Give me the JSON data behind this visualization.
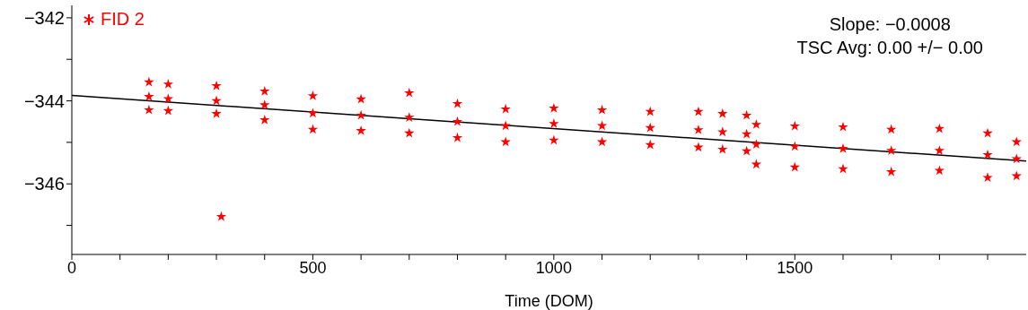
{
  "chart_data": {
    "type": "scatter",
    "xlabel": "Time (DOM)",
    "legend": "top left",
    "marker": "star",
    "xlim": [
      0,
      1980
    ],
    "ylim": [
      -347.7,
      -341.7
    ],
    "xticks": [
      0,
      {
        "value": 100,
        "label": null
      },
      {
        "value": 200,
        "label": null
      },
      {
        "value": 300,
        "label": null
      },
      {
        "value": 400,
        "label": null
      },
      500,
      {
        "value": 600,
        "label": null
      },
      {
        "value": 700,
        "label": null
      },
      {
        "value": 800,
        "label": null
      },
      {
        "value": 900,
        "label": null
      },
      1000,
      {
        "value": 1100,
        "label": null
      },
      {
        "value": 1200,
        "label": null
      },
      {
        "value": 1300,
        "label": null
      },
      {
        "value": 1400,
        "label": null
      },
      1500,
      {
        "value": 1600,
        "label": null
      },
      {
        "value": 1700,
        "label": null
      },
      {
        "value": 1800,
        "label": null
      },
      {
        "value": 1900,
        "label": null
      }
    ],
    "yticks": [
      -342,
      {
        "value": -343,
        "label": null
      },
      -344,
      {
        "value": -345,
        "label": null
      },
      -346,
      {
        "value": -347,
        "label": null
      }
    ],
    "annotations": [
      "Slope: −0.0008",
      "TSC Avg: 0.00 +/− 0.00"
    ],
    "series": [
      {
        "name": "FID 2",
        "color": "#ff0000",
        "x": [
          160,
          160,
          160,
          200,
          200,
          200,
          300,
          300,
          300,
          310,
          400,
          400,
          400,
          500,
          500,
          500,
          600,
          600,
          600,
          700,
          700,
          700,
          800,
          800,
          800,
          900,
          900,
          900,
          1000,
          1000,
          1000,
          1100,
          1100,
          1100,
          1200,
          1200,
          1200,
          1300,
          1300,
          1300,
          1350,
          1350,
          1350,
          1400,
          1400,
          1400,
          1420,
          1420,
          1420,
          1500,
          1500,
          1500,
          1600,
          1600,
          1600,
          1700,
          1700,
          1700,
          1800,
          1800,
          1800,
          1900,
          1900,
          1900,
          1960,
          1960,
          1960
        ],
        "values": [
          -343.55,
          -343.9,
          -344.22,
          -343.6,
          -343.95,
          -344.24,
          -343.64,
          -344.0,
          -344.31,
          -346.79,
          -343.77,
          -344.1,
          -344.46,
          -343.88,
          -344.3,
          -344.69,
          -343.96,
          -344.35,
          -344.72,
          -343.81,
          -344.4,
          -344.78,
          -344.07,
          -344.5,
          -344.89,
          -344.2,
          -344.6,
          -344.99,
          -344.18,
          -344.55,
          -344.95,
          -344.22,
          -344.6,
          -344.99,
          -344.26,
          -344.65,
          -345.06,
          -344.26,
          -344.7,
          -345.12,
          -344.31,
          -344.75,
          -345.17,
          -344.35,
          -344.8,
          -345.21,
          -344.57,
          -345.05,
          -345.53,
          -344.61,
          -345.1,
          -345.6,
          -344.63,
          -345.15,
          -345.64,
          -344.69,
          -345.2,
          -345.71,
          -344.67,
          -345.2,
          -345.68,
          -344.78,
          -345.3,
          -345.85,
          -344.99,
          -345.4,
          -345.81
        ]
      },
      {
        "color": "#000000",
        "type": "line",
        "marker": "none",
        "x": [
          0,
          1980
        ],
        "values": [
          -343.87,
          -345.45
        ]
      }
    ]
  }
}
